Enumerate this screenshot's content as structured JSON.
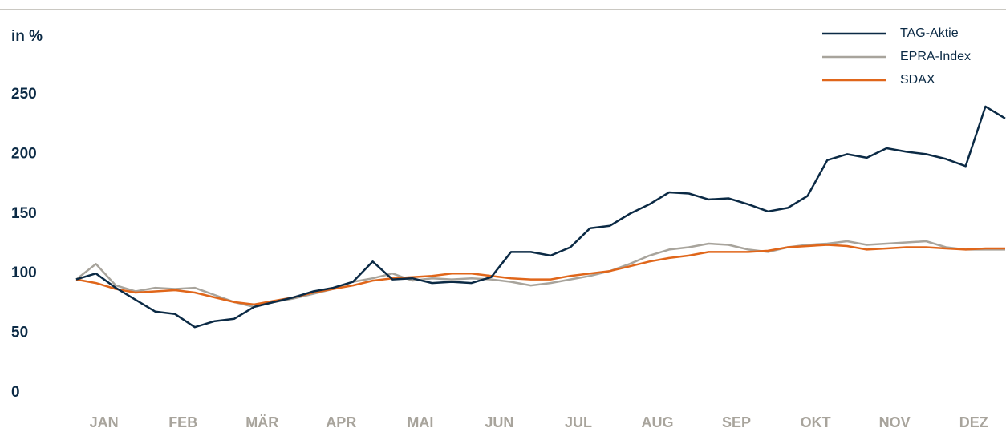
{
  "chart_data": {
    "type": "line",
    "y_label": "in %",
    "categories": [
      null,
      "JAN",
      null,
      null,
      null,
      "FEB",
      null,
      null,
      null,
      "MÄR",
      null,
      null,
      null,
      "APR",
      null,
      null,
      null,
      "MAI",
      null,
      null,
      null,
      "JUN",
      null,
      null,
      null,
      "JUL",
      null,
      null,
      null,
      "AUG",
      null,
      null,
      null,
      "SEP",
      null,
      null,
      null,
      "OKT",
      null,
      null,
      null,
      "NOV",
      null,
      null,
      null,
      "DEZ",
      null,
      null
    ],
    "series": [
      {
        "name": "TAG-Aktie",
        "color": "#0b2a45",
        "values": [
          95,
          100,
          88,
          78,
          68,
          66,
          55,
          60,
          62,
          72,
          76,
          80,
          85,
          88,
          93,
          110,
          95,
          96,
          92,
          93,
          92,
          97,
          118,
          118,
          115,
          122,
          138,
          140,
          150,
          158,
          168,
          167,
          162,
          163,
          158,
          152,
          155,
          165,
          195,
          200,
          197,
          205,
          202,
          200,
          196,
          190,
          240,
          230
        ]
      },
      {
        "name": "EPRA-Index",
        "color": "#a8a49c",
        "values": [
          95,
          108,
          90,
          85,
          88,
          87,
          88,
          82,
          76,
          72,
          76,
          79,
          83,
          87,
          93,
          96,
          100,
          94,
          96,
          95,
          96,
          95,
          93,
          90,
          92,
          95,
          98,
          102,
          108,
          115,
          120,
          122,
          125,
          124,
          120,
          118,
          122,
          124,
          125,
          127,
          124,
          125,
          126,
          127,
          122,
          120,
          120,
          120
        ]
      },
      {
        "name": "SDAX",
        "color": "#e0661a",
        "values": [
          95,
          92,
          87,
          84,
          85,
          86,
          84,
          80,
          76,
          74,
          77,
          80,
          84,
          87,
          90,
          94,
          96,
          97,
          98,
          100,
          100,
          98,
          96,
          95,
          95,
          98,
          100,
          102,
          106,
          110,
          113,
          115,
          118,
          118,
          118,
          119,
          122,
          123,
          124,
          123,
          120,
          121,
          122,
          122,
          121,
          120,
          121,
          121
        ]
      }
    ],
    "ylim": [
      0,
      300
    ],
    "yticks": [
      0,
      50,
      100,
      150,
      200,
      250
    ],
    "legend": "upper right"
  }
}
